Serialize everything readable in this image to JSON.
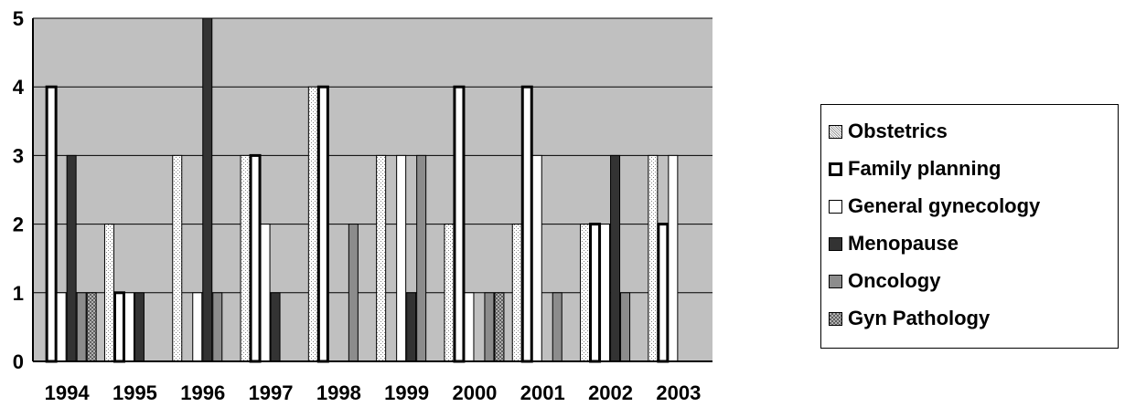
{
  "chart_data": {
    "type": "bar",
    "title": "",
    "xlabel": "",
    "ylabel": "",
    "ylim": [
      0,
      5
    ],
    "yticks": [
      "0",
      "1",
      "2",
      "3",
      "4",
      "5"
    ],
    "categories": [
      "1994",
      "1995",
      "1996",
      "1997",
      "1998",
      "1999",
      "2000",
      "2001",
      "2002",
      "2003"
    ],
    "grid": true,
    "legend_position": "right",
    "plot_background": "#c0c0c0",
    "series": [
      {
        "name": "Obstetrics",
        "color": "#e8e8e8",
        "pattern": "dots",
        "values": [
          0,
          2,
          3,
          3,
          4,
          3,
          2,
          2,
          2,
          3
        ]
      },
      {
        "name": "Family planning",
        "color": "#000000",
        "pattern": "thick-border",
        "values": [
          4,
          1,
          0,
          3,
          4,
          0,
          4,
          4,
          2,
          2
        ]
      },
      {
        "name": "General gynecology",
        "color": "#ffffff",
        "pattern": "solid",
        "values": [
          1,
          1,
          1,
          2,
          0,
          3,
          1,
          3,
          2,
          3
        ]
      },
      {
        "name": "Menopause",
        "color": "#333333",
        "pattern": "solid",
        "values": [
          3,
          1,
          5,
          1,
          0,
          1,
          0,
          0,
          3,
          0
        ]
      },
      {
        "name": "Oncology",
        "color": "#8c8c8c",
        "pattern": "solid",
        "values": [
          1,
          0,
          1,
          0,
          2,
          3,
          1,
          1,
          1,
          0
        ]
      },
      {
        "name": "Gyn Pathology",
        "color": "#9a9a9a",
        "pattern": "checker",
        "values": [
          1,
          0,
          0,
          0,
          0,
          0,
          1,
          0,
          0,
          0
        ]
      }
    ]
  }
}
